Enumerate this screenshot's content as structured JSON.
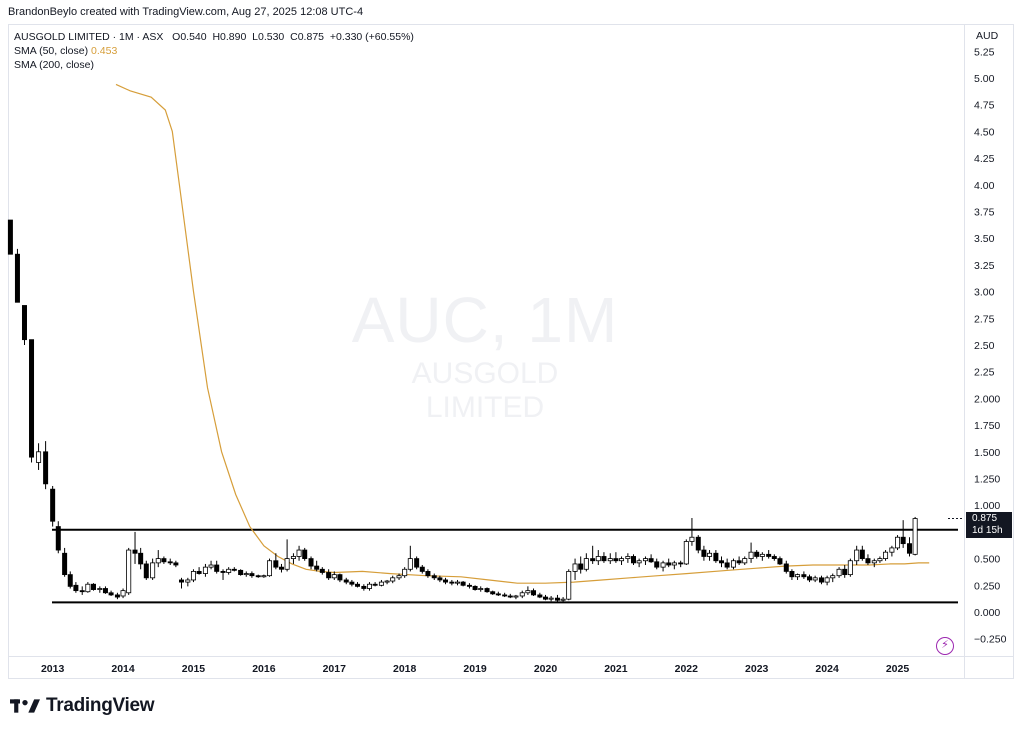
{
  "caption": "BrandonBeylo created with TradingView.com, Aug 27, 2025 12:08 UTC-4",
  "legend": {
    "symbol_line": "AUSGOLD LIMITED · 1M · ASX",
    "o_label": "O",
    "o_value": "0.540",
    "h_label": "H",
    "h_value": "0.890",
    "l_label": "L",
    "l_value": "0.530",
    "c_label": "C",
    "c_value": "0.875",
    "change": "+0.330 (+60.55%)",
    "sma50_label": "SMA (50, close)",
    "sma50_value": "0.453",
    "sma200_label": "SMA (200, close)"
  },
  "currency": "AUD",
  "watermark": {
    "ticker": "AUC, 1M",
    "name": "AUSGOLD LIMITED"
  },
  "price_tag": {
    "price": "0.875",
    "countdown": "1d 15h"
  },
  "brand": {
    "name": "TradingView",
    "logo_icon": "tradingview-logo-icon"
  },
  "bolt_icon": "lightning-icon",
  "colors": {
    "sma50": "#d69e3a",
    "candle": "#000000",
    "border": "#e0e3eb",
    "tag_bg": "#131722",
    "bolt": "#9c27b0"
  },
  "chart_data": {
    "type": "candlestick",
    "ylim": [
      -0.25,
      5.25
    ],
    "y_ticks": [
      "5.25",
      "5.00",
      "4.75",
      "4.50",
      "4.25",
      "4.00",
      "3.75",
      "3.50",
      "3.25",
      "3.00",
      "2.75",
      "2.50",
      "2.25",
      "2.000",
      "1.750",
      "1.500",
      "1.250",
      "1.000",
      "0.750",
      "0.500",
      "0.250",
      "0.000",
      "−0.250"
    ],
    "y_tick_values": [
      5.25,
      5.0,
      4.75,
      4.5,
      4.25,
      4.0,
      3.75,
      3.5,
      3.25,
      3.0,
      2.75,
      2.5,
      2.25,
      2.0,
      1.75,
      1.5,
      1.25,
      1.0,
      0.75,
      0.5,
      0.25,
      0.0,
      -0.25
    ],
    "x_labels": [
      "2013",
      "2014",
      "2015",
      "2016",
      "2017",
      "2018",
      "2019",
      "2020",
      "2021",
      "2022",
      "2023",
      "2024",
      "2025"
    ],
    "x_range": [
      2012.38,
      2025.93
    ],
    "horizontal_lines": [
      0.77,
      0.09
    ],
    "sma50_points": [
      [
        2013.9,
        4.94
      ],
      [
        2014.1,
        4.88
      ],
      [
        2014.4,
        4.82
      ],
      [
        2014.6,
        4.7
      ],
      [
        2014.7,
        4.5
      ],
      [
        2014.8,
        4.0
      ],
      [
        2015.0,
        3.0
      ],
      [
        2015.2,
        2.1
      ],
      [
        2015.4,
        1.5
      ],
      [
        2015.6,
        1.1
      ],
      [
        2015.8,
        0.8
      ],
      [
        2016.0,
        0.62
      ],
      [
        2016.2,
        0.52
      ],
      [
        2016.4,
        0.45
      ],
      [
        2016.6,
        0.4
      ],
      [
        2016.8,
        0.38
      ],
      [
        2017.0,
        0.37
      ],
      [
        2017.4,
        0.38
      ],
      [
        2017.8,
        0.36
      ],
      [
        2018.3,
        0.34
      ],
      [
        2018.8,
        0.33
      ],
      [
        2019.2,
        0.3
      ],
      [
        2019.6,
        0.27
      ],
      [
        2020.0,
        0.27
      ],
      [
        2020.4,
        0.28
      ],
      [
        2020.8,
        0.3
      ],
      [
        2021.2,
        0.32
      ],
      [
        2021.6,
        0.34
      ],
      [
        2022.0,
        0.36
      ],
      [
        2022.6,
        0.39
      ],
      [
        2023.0,
        0.41
      ],
      [
        2023.4,
        0.43
      ],
      [
        2023.8,
        0.44
      ],
      [
        2024.2,
        0.44
      ],
      [
        2024.6,
        0.44
      ],
      [
        2024.9,
        0.45
      ],
      [
        2025.1,
        0.45
      ],
      [
        2025.3,
        0.46
      ],
      [
        2025.45,
        0.46
      ]
    ],
    "candles": [
      [
        2012.4,
        3.67,
        3.67,
        3.35,
        3.35
      ],
      [
        2012.5,
        3.35,
        3.4,
        2.9,
        2.9
      ],
      [
        2012.6,
        2.87,
        2.87,
        2.5,
        2.55
      ],
      [
        2012.7,
        2.55,
        2.55,
        1.4,
        1.45
      ],
      [
        2012.8,
        1.4,
        1.58,
        1.33,
        1.5
      ],
      [
        2012.9,
        1.5,
        1.6,
        1.15,
        1.2
      ],
      [
        2013.0,
        1.15,
        1.18,
        0.8,
        0.85
      ],
      [
        2013.08,
        0.8,
        0.85,
        0.55,
        0.58
      ],
      [
        2013.17,
        0.55,
        0.6,
        0.33,
        0.35
      ],
      [
        2013.25,
        0.35,
        0.38,
        0.22,
        0.24
      ],
      [
        2013.33,
        0.25,
        0.28,
        0.18,
        0.2
      ],
      [
        2013.42,
        0.2,
        0.24,
        0.16,
        0.19
      ],
      [
        2013.5,
        0.19,
        0.28,
        0.18,
        0.26
      ],
      [
        2013.58,
        0.26,
        0.27,
        0.2,
        0.21
      ],
      [
        2013.67,
        0.21,
        0.24,
        0.18,
        0.22
      ],
      [
        2013.75,
        0.22,
        0.24,
        0.17,
        0.18
      ],
      [
        2013.83,
        0.18,
        0.2,
        0.15,
        0.16
      ],
      [
        2013.92,
        0.16,
        0.18,
        0.12,
        0.14
      ],
      [
        2014.0,
        0.15,
        0.22,
        0.13,
        0.2
      ],
      [
        2014.08,
        0.18,
        0.6,
        0.16,
        0.58
      ],
      [
        2014.17,
        0.58,
        0.75,
        0.45,
        0.55
      ],
      [
        2014.25,
        0.55,
        0.6,
        0.4,
        0.45
      ],
      [
        2014.33,
        0.45,
        0.48,
        0.3,
        0.32
      ],
      [
        2014.42,
        0.32,
        0.5,
        0.3,
        0.46
      ],
      [
        2014.5,
        0.46,
        0.58,
        0.42,
        0.5
      ],
      [
        2014.58,
        0.5,
        0.52,
        0.45,
        0.47
      ],
      [
        2014.67,
        0.47,
        0.5,
        0.44,
        0.46
      ],
      [
        2014.75,
        0.46,
        0.48,
        0.42,
        0.44
      ],
      [
        2014.83,
        0.3,
        0.32,
        0.22,
        0.28
      ],
      [
        2014.92,
        0.28,
        0.32,
        0.24,
        0.3
      ],
      [
        2015.0,
        0.3,
        0.4,
        0.28,
        0.38
      ],
      [
        2015.08,
        0.38,
        0.42,
        0.35,
        0.36
      ],
      [
        2015.17,
        0.36,
        0.45,
        0.33,
        0.42
      ],
      [
        2015.25,
        0.42,
        0.48,
        0.4,
        0.44
      ],
      [
        2015.33,
        0.44,
        0.48,
        0.36,
        0.38
      ],
      [
        2015.42,
        0.38,
        0.4,
        0.3,
        0.37
      ],
      [
        2015.5,
        0.37,
        0.42,
        0.35,
        0.4
      ],
      [
        2015.58,
        0.4,
        0.42,
        0.38,
        0.39
      ],
      [
        2015.67,
        0.39,
        0.4,
        0.34,
        0.35
      ],
      [
        2015.75,
        0.35,
        0.38,
        0.33,
        0.36
      ],
      [
        2015.83,
        0.36,
        0.38,
        0.32,
        0.34
      ],
      [
        2015.92,
        0.34,
        0.35,
        0.32,
        0.33
      ],
      [
        2016.0,
        0.33,
        0.35,
        0.32,
        0.34
      ],
      [
        2016.08,
        0.34,
        0.5,
        0.33,
        0.48
      ],
      [
        2016.17,
        0.48,
        0.55,
        0.4,
        0.42
      ],
      [
        2016.25,
        0.42,
        0.45,
        0.37,
        0.4
      ],
      [
        2016.33,
        0.4,
        0.68,
        0.38,
        0.5
      ],
      [
        2016.42,
        0.5,
        0.55,
        0.45,
        0.52
      ],
      [
        2016.5,
        0.52,
        0.62,
        0.48,
        0.58
      ],
      [
        2016.58,
        0.58,
        0.6,
        0.48,
        0.5
      ],
      [
        2016.67,
        0.5,
        0.52,
        0.4,
        0.43
      ],
      [
        2016.75,
        0.43,
        0.48,
        0.38,
        0.4
      ],
      [
        2016.83,
        0.4,
        0.42,
        0.35,
        0.37
      ],
      [
        2016.92,
        0.37,
        0.4,
        0.3,
        0.32
      ],
      [
        2017.0,
        0.32,
        0.38,
        0.3,
        0.35
      ],
      [
        2017.08,
        0.35,
        0.36,
        0.28,
        0.3
      ],
      [
        2017.17,
        0.3,
        0.32,
        0.26,
        0.28
      ],
      [
        2017.25,
        0.28,
        0.3,
        0.24,
        0.26
      ],
      [
        2017.33,
        0.26,
        0.28,
        0.23,
        0.24
      ],
      [
        2017.42,
        0.24,
        0.26,
        0.2,
        0.22
      ],
      [
        2017.5,
        0.22,
        0.28,
        0.2,
        0.26
      ],
      [
        2017.58,
        0.26,
        0.28,
        0.24,
        0.25
      ],
      [
        2017.67,
        0.25,
        0.3,
        0.24,
        0.28
      ],
      [
        2017.75,
        0.28,
        0.3,
        0.26,
        0.29
      ],
      [
        2017.83,
        0.29,
        0.34,
        0.27,
        0.32
      ],
      [
        2017.92,
        0.32,
        0.36,
        0.3,
        0.34
      ],
      [
        2018.0,
        0.34,
        0.42,
        0.32,
        0.4
      ],
      [
        2018.08,
        0.4,
        0.62,
        0.38,
        0.5
      ],
      [
        2018.17,
        0.5,
        0.52,
        0.4,
        0.42
      ],
      [
        2018.25,
        0.42,
        0.44,
        0.36,
        0.38
      ],
      [
        2018.33,
        0.38,
        0.4,
        0.32,
        0.34
      ],
      [
        2018.42,
        0.34,
        0.36,
        0.3,
        0.32
      ],
      [
        2018.5,
        0.32,
        0.34,
        0.28,
        0.3
      ],
      [
        2018.58,
        0.3,
        0.32,
        0.26,
        0.28
      ],
      [
        2018.67,
        0.28,
        0.3,
        0.25,
        0.27
      ],
      [
        2018.75,
        0.27,
        0.3,
        0.25,
        0.28
      ],
      [
        2018.83,
        0.28,
        0.29,
        0.24,
        0.25
      ],
      [
        2018.92,
        0.25,
        0.27,
        0.22,
        0.24
      ],
      [
        2019.0,
        0.24,
        0.25,
        0.2,
        0.21
      ],
      [
        2019.08,
        0.21,
        0.24,
        0.19,
        0.22
      ],
      [
        2019.17,
        0.22,
        0.23,
        0.18,
        0.19
      ],
      [
        2019.25,
        0.19,
        0.2,
        0.16,
        0.17
      ],
      [
        2019.33,
        0.17,
        0.19,
        0.15,
        0.16
      ],
      [
        2019.42,
        0.16,
        0.18,
        0.14,
        0.15
      ],
      [
        2019.5,
        0.15,
        0.17,
        0.13,
        0.14
      ],
      [
        2019.58,
        0.14,
        0.16,
        0.12,
        0.15
      ],
      [
        2019.67,
        0.15,
        0.2,
        0.13,
        0.18
      ],
      [
        2019.75,
        0.18,
        0.24,
        0.16,
        0.2
      ],
      [
        2019.83,
        0.2,
        0.22,
        0.15,
        0.16
      ],
      [
        2019.92,
        0.16,
        0.18,
        0.13,
        0.14
      ],
      [
        2020.0,
        0.14,
        0.16,
        0.11,
        0.12
      ],
      [
        2020.08,
        0.12,
        0.15,
        0.1,
        0.13
      ],
      [
        2020.17,
        0.13,
        0.16,
        0.09,
        0.11
      ],
      [
        2020.25,
        0.11,
        0.14,
        0.09,
        0.12
      ],
      [
        2020.33,
        0.12,
        0.4,
        0.11,
        0.38
      ],
      [
        2020.42,
        0.38,
        0.5,
        0.3,
        0.45
      ],
      [
        2020.5,
        0.45,
        0.52,
        0.36,
        0.4
      ],
      [
        2020.58,
        0.4,
        0.55,
        0.38,
        0.5
      ],
      [
        2020.67,
        0.5,
        0.62,
        0.45,
        0.48
      ],
      [
        2020.75,
        0.48,
        0.58,
        0.44,
        0.52
      ],
      [
        2020.83,
        0.52,
        0.56,
        0.46,
        0.48
      ],
      [
        2020.92,
        0.48,
        0.55,
        0.45,
        0.5
      ],
      [
        2021.0,
        0.5,
        0.56,
        0.46,
        0.48
      ],
      [
        2021.08,
        0.48,
        0.52,
        0.44,
        0.5
      ],
      [
        2021.17,
        0.5,
        0.55,
        0.46,
        0.52
      ],
      [
        2021.25,
        0.52,
        0.54,
        0.44,
        0.46
      ],
      [
        2021.33,
        0.46,
        0.5,
        0.42,
        0.48
      ],
      [
        2021.42,
        0.48,
        0.52,
        0.44,
        0.5
      ],
      [
        2021.5,
        0.5,
        0.54,
        0.46,
        0.47
      ],
      [
        2021.58,
        0.47,
        0.5,
        0.4,
        0.42
      ],
      [
        2021.67,
        0.42,
        0.48,
        0.38,
        0.46
      ],
      [
        2021.75,
        0.46,
        0.5,
        0.42,
        0.44
      ],
      [
        2021.83,
        0.44,
        0.48,
        0.4,
        0.46
      ],
      [
        2021.92,
        0.46,
        0.48,
        0.42,
        0.45
      ],
      [
        2022.0,
        0.45,
        0.68,
        0.44,
        0.66
      ],
      [
        2022.08,
        0.66,
        0.88,
        0.62,
        0.7
      ],
      [
        2022.17,
        0.7,
        0.72,
        0.55,
        0.58
      ],
      [
        2022.25,
        0.58,
        0.62,
        0.48,
        0.52
      ],
      [
        2022.33,
        0.52,
        0.58,
        0.48,
        0.55
      ],
      [
        2022.42,
        0.55,
        0.58,
        0.46,
        0.48
      ],
      [
        2022.5,
        0.48,
        0.52,
        0.42,
        0.46
      ],
      [
        2022.58,
        0.46,
        0.5,
        0.4,
        0.42
      ],
      [
        2022.67,
        0.42,
        0.5,
        0.4,
        0.48
      ],
      [
        2022.75,
        0.48,
        0.52,
        0.44,
        0.46
      ],
      [
        2022.83,
        0.46,
        0.52,
        0.44,
        0.5
      ],
      [
        2022.92,
        0.5,
        0.65,
        0.46,
        0.56
      ],
      [
        2023.0,
        0.56,
        0.58,
        0.5,
        0.52
      ],
      [
        2023.08,
        0.52,
        0.56,
        0.48,
        0.54
      ],
      [
        2023.17,
        0.54,
        0.58,
        0.5,
        0.52
      ],
      [
        2023.25,
        0.52,
        0.54,
        0.48,
        0.5
      ],
      [
        2023.33,
        0.5,
        0.52,
        0.44,
        0.45
      ],
      [
        2023.42,
        0.45,
        0.48,
        0.36,
        0.38
      ],
      [
        2023.5,
        0.38,
        0.4,
        0.3,
        0.33
      ],
      [
        2023.58,
        0.33,
        0.36,
        0.3,
        0.35
      ],
      [
        2023.67,
        0.35,
        0.38,
        0.31,
        0.33
      ],
      [
        2023.75,
        0.33,
        0.35,
        0.28,
        0.3
      ],
      [
        2023.83,
        0.3,
        0.34,
        0.28,
        0.32
      ],
      [
        2023.92,
        0.32,
        0.34,
        0.26,
        0.28
      ],
      [
        2024.0,
        0.28,
        0.34,
        0.25,
        0.32
      ],
      [
        2024.08,
        0.32,
        0.36,
        0.28,
        0.34
      ],
      [
        2024.17,
        0.34,
        0.42,
        0.32,
        0.4
      ],
      [
        2024.25,
        0.4,
        0.44,
        0.32,
        0.35
      ],
      [
        2024.33,
        0.35,
        0.5,
        0.33,
        0.48
      ],
      [
        2024.42,
        0.48,
        0.62,
        0.44,
        0.58
      ],
      [
        2024.5,
        0.58,
        0.62,
        0.48,
        0.5
      ],
      [
        2024.58,
        0.5,
        0.54,
        0.44,
        0.46
      ],
      [
        2024.67,
        0.46,
        0.5,
        0.42,
        0.48
      ],
      [
        2024.75,
        0.48,
        0.52,
        0.46,
        0.5
      ],
      [
        2024.83,
        0.5,
        0.58,
        0.48,
        0.56
      ],
      [
        2024.92,
        0.56,
        0.62,
        0.52,
        0.6
      ],
      [
        2025.0,
        0.6,
        0.72,
        0.58,
        0.7
      ],
      [
        2025.08,
        0.7,
        0.86,
        0.6,
        0.64
      ],
      [
        2025.17,
        0.64,
        0.7,
        0.52,
        0.55
      ],
      [
        2025.25,
        0.54,
        0.89,
        0.53,
        0.875
      ]
    ]
  }
}
